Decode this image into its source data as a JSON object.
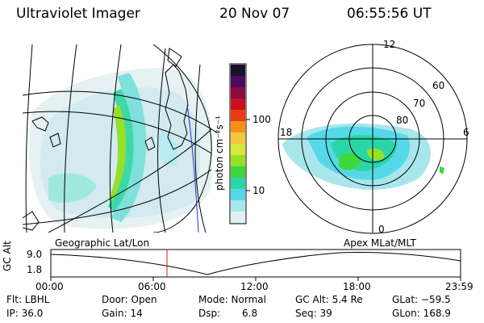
{
  "header": {
    "title": "Ultraviolet Imager",
    "date": "20 Nov 07",
    "time": "06:55:56 UT"
  },
  "left_panel": {
    "label": "Geographic Lat/Lon"
  },
  "polar_panel": {
    "label": "Apex MLat/MLT",
    "hours": [
      "12",
      "18",
      "6",
      "0"
    ],
    "latitudes": [
      "60",
      "70",
      "80"
    ]
  },
  "colorbar": {
    "unit_label": "photon cm⁻²s⁻¹",
    "ticks": [
      "100",
      "10"
    ],
    "colors": [
      "#1c0f2e",
      "#4a0d5e",
      "#8c0a3e",
      "#c8101e",
      "#ee3a10",
      "#f7901a",
      "#f5c63a",
      "#d8e83a",
      "#96e02a",
      "#3ed83a",
      "#2ad6a8",
      "#56d8e8",
      "#a8e6ec",
      "#e0f0f2"
    ]
  },
  "altitude_plot": {
    "ylabel": "GC Alt",
    "yticks": [
      "9.0",
      "1.8"
    ],
    "xticks": [
      "00:00",
      "06:00",
      "12:00",
      "18:00",
      "23:59"
    ],
    "current_time_marker_color": "#cc2222"
  },
  "status": {
    "flt": "Flt: LBHL",
    "ip": "IP: 36.0",
    "door": "Door: Open",
    "gain": "Gain: 14",
    "mode": "Mode: Normal",
    "dsp_label": "Dsp:",
    "dsp_value": "6.8",
    "gc_alt": "GC Alt: 5.4 Re",
    "seq": "Seq: 39",
    "glat": "GLat: −59.5",
    "glon": "GLon: 168.9"
  }
}
